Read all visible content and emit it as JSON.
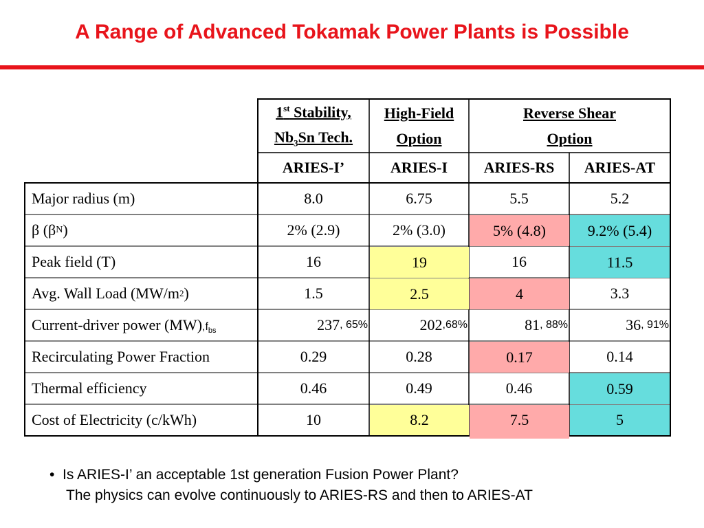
{
  "title": "A Range of Advanced Tokamak Power Plants is Possible",
  "header": {
    "groups": [
      {
        "line1": "1st Stability,",
        "line1_sup": "st",
        "line2": "Nb3Sn Tech."
      },
      {
        "line1": "High-Field",
        "line2": "Option"
      },
      {
        "line1": "Reverse Shear",
        "line2": "Option"
      }
    ],
    "designs": [
      "ARIES-I’",
      "ARIES-I",
      "ARIES-RS",
      "ARIES-AT"
    ]
  },
  "rows": [
    {
      "label": "Major radius (m)",
      "values": [
        "8.0",
        "6.75",
        "5.5",
        "5.2"
      ]
    },
    {
      "label": "β (βN)",
      "values": [
        "2% (2.9)",
        "2% (3.0)",
        "5% (4.8)",
        "9.2% (5.4)"
      ]
    },
    {
      "label": "Peak field (T)",
      "values": [
        "16",
        "19",
        "16",
        "11.5"
      ]
    },
    {
      "label": "Avg. Wall Load (MW/m2)",
      "values": [
        "1.5",
        "2.5",
        "4",
        "3.3"
      ]
    },
    {
      "label": "Current-driver power (MW)",
      "label_suffix": ",fbs",
      "values": [
        "237",
        "202",
        "81",
        "36"
      ],
      "fbs": [
        ", 65%",
        ",68%",
        ", 88%",
        ", 91%"
      ]
    },
    {
      "label": "Recirculating Power Fraction",
      "values": [
        "0.29",
        "0.28",
        "0.17",
        "0.14"
      ]
    },
    {
      "label": "Thermal efficiency",
      "values": [
        "0.46",
        "0.49",
        "0.46",
        "0.59"
      ]
    },
    {
      "label": "Cost of Electricity (c/kWh)",
      "values": [
        "10",
        "8.2",
        "7.5",
        "5"
      ]
    }
  ],
  "colors": {
    "yellow": "#ffff99",
    "pink": "#ffaaaa",
    "cyan": "#66dddd",
    "title": "#e8141b"
  },
  "bullets": [
    "Is ARIES-I’ an acceptable 1st generation Fusion Power Plant?",
    "The physics can evolve continuously to ARIES-RS and then to ARIES-AT"
  ]
}
